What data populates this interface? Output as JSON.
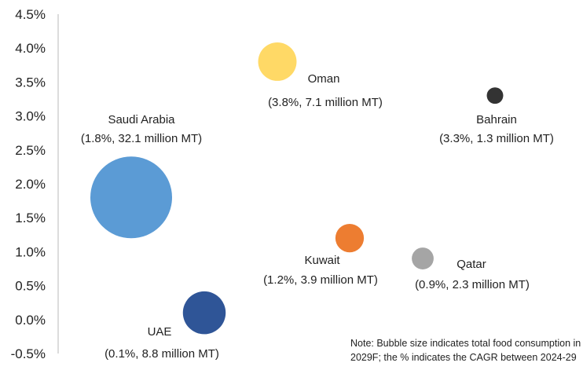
{
  "chart_data": {
    "type": "scatter",
    "title": "",
    "xlabel": "",
    "ylabel": "",
    "ylim": [
      -0.5,
      4.5
    ],
    "y_ticks": [
      "4.5%",
      "4.0%",
      "3.5%",
      "3.0%",
      "2.5%",
      "2.0%",
      "1.5%",
      "1.0%",
      "0.5%",
      "0.0%",
      "-0.5%"
    ],
    "grid": false,
    "legend": "none",
    "series": [
      {
        "name": "Saudi Arabia",
        "cagr": 1.8,
        "volume": 32.1,
        "color": "#5b9bd5",
        "label_detail": "(1.8%, 32.1 million MT)"
      },
      {
        "name": "Oman",
        "cagr": 3.8,
        "volume": 7.1,
        "color": "#ffd966",
        "label_detail": "(3.8%, 7.1 million MT)"
      },
      {
        "name": "Bahrain",
        "cagr": 3.3,
        "volume": 1.3,
        "color": "#333333",
        "label_detail": "(3.3%, 1.3 million MT)"
      },
      {
        "name": "Kuwait",
        "cagr": 1.2,
        "volume": 3.9,
        "color": "#ed7d31",
        "label_detail": "(1.2%, 3.9 million MT)"
      },
      {
        "name": "Qatar",
        "cagr": 0.9,
        "volume": 2.3,
        "color": "#a5a5a5",
        "label_detail": "(0.9%, 2.3 million MT)"
      },
      {
        "name": "UAE",
        "cagr": 0.1,
        "volume": 8.8,
        "color": "#2f5597",
        "label_detail": "(0.1%, 8.8 million MT)"
      }
    ],
    "note": "Note: Bubble size indicates total food consumption in 2029F; the % indicates the CAGR between 2024-29"
  }
}
